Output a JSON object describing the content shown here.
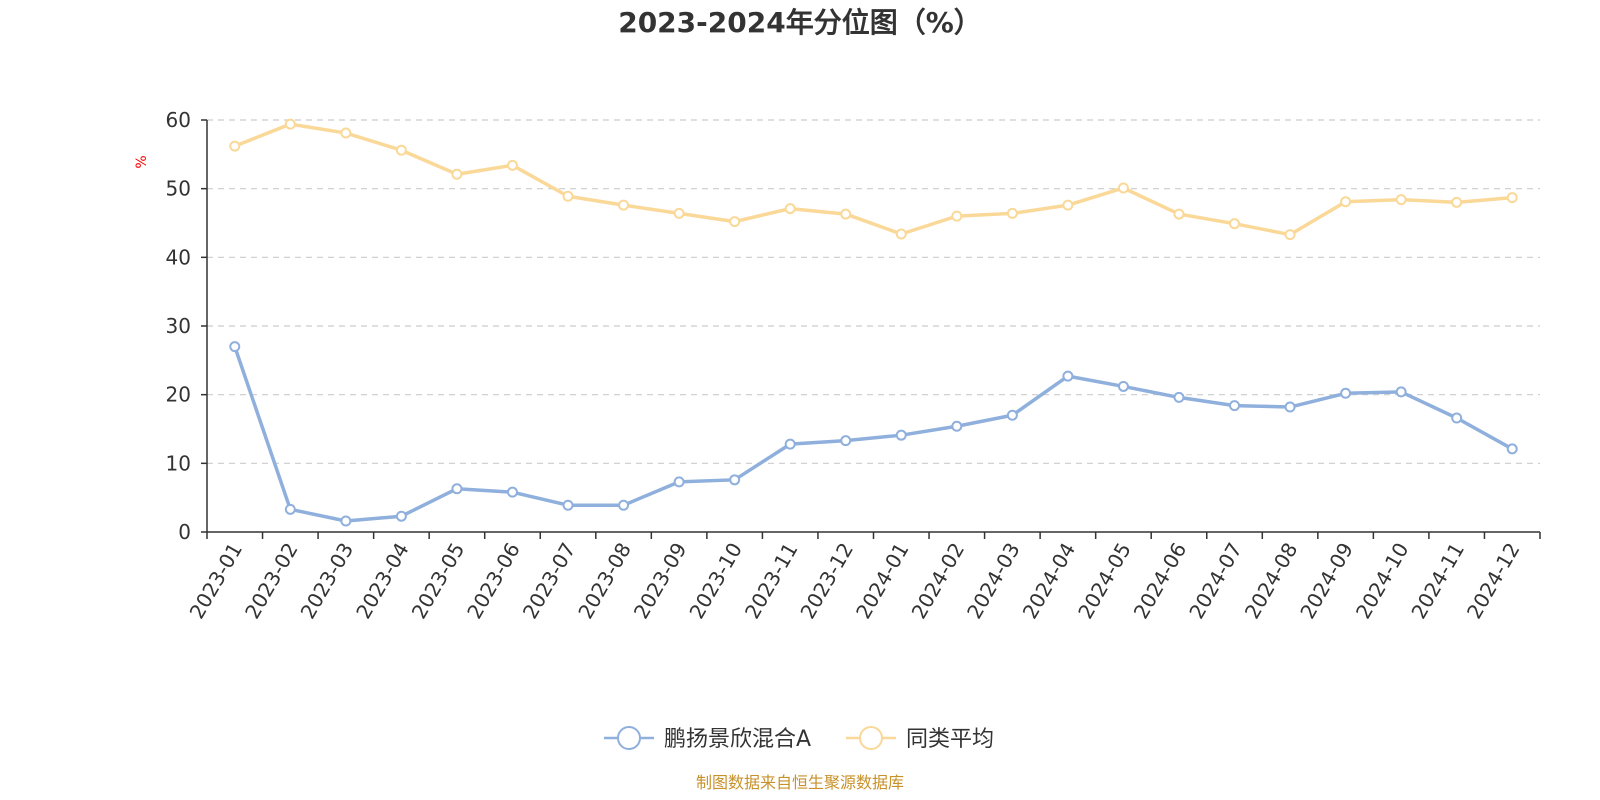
{
  "chart_data": {
    "type": "line",
    "title": "2023-2024年分位图（%）",
    "ylabel": "%",
    "ylim": [
      0,
      60
    ],
    "yticks": [
      "0",
      "10",
      "20",
      "30",
      "40",
      "50",
      "60"
    ],
    "grid": true,
    "legend_position": "bottom-center",
    "categories": [
      "2023-01",
      "2023-02",
      "2023-03",
      "2023-04",
      "2023-05",
      "2023-06",
      "2023-07",
      "2023-08",
      "2023-09",
      "2023-10",
      "2023-11",
      "2023-12",
      "2024-01",
      "2024-02",
      "2024-03",
      "2024-04",
      "2024-05",
      "2024-06",
      "2024-07",
      "2024-08",
      "2024-09",
      "2024-10",
      "2024-11",
      "2024-12"
    ],
    "series": [
      {
        "name": "鹏扬景欣混合A",
        "color": "#8fafdc",
        "values": [
          27.0,
          3.3,
          1.6,
          2.3,
          6.3,
          5.8,
          3.9,
          3.9,
          7.3,
          7.6,
          12.8,
          13.3,
          14.1,
          15.4,
          17.0,
          22.7,
          21.2,
          19.6,
          18.4,
          18.2,
          20.2,
          20.4,
          16.6,
          12.1
        ]
      },
      {
        "name": "同类平均",
        "color": "#fad898",
        "values": [
          56.2,
          59.4,
          58.1,
          55.6,
          52.1,
          53.4,
          48.9,
          47.6,
          46.4,
          45.2,
          47.1,
          46.3,
          43.4,
          46.0,
          46.4,
          47.6,
          50.1,
          46.3,
          44.9,
          43.3,
          48.1,
          48.4,
          48.0,
          48.7
        ]
      }
    ]
  },
  "colors": {
    "axis": "#333333",
    "grid": "#cccccc",
    "unit": "#ff0000",
    "source": "#c8912a"
  },
  "source_text": "制图数据来自恒生聚源数据库"
}
